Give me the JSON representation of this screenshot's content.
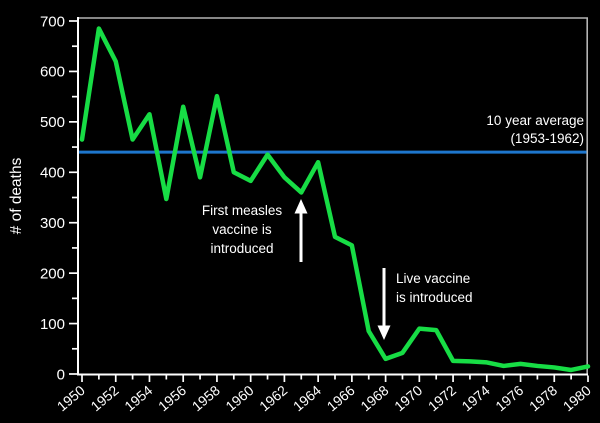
{
  "chart_data": {
    "type": "line",
    "title": "",
    "xlabel": "",
    "ylabel": "# of deaths",
    "ylim": [
      0,
      700
    ],
    "ytick_step": 100,
    "yminor_step": 50,
    "xlim": [
      1950,
      1980
    ],
    "xtick_label_step": 2,
    "grid": false,
    "legend_position": "none",
    "background_color": "#000000",
    "axis_color": "#ffffff",
    "border_color": "#b4b4b4",
    "x": [
      1950,
      1951,
      1952,
      1953,
      1954,
      1955,
      1956,
      1957,
      1958,
      1959,
      1960,
      1961,
      1962,
      1963,
      1964,
      1965,
      1966,
      1967,
      1968,
      1969,
      1970,
      1971,
      1972,
      1973,
      1974,
      1975,
      1976,
      1977,
      1978,
      1979,
      1980
    ],
    "series": [
      {
        "name": "measles-deaths",
        "color": "#17dd45",
        "values": [
          465,
          685,
          620,
          465,
          515,
          347,
          530,
          390,
          551,
          400,
          383,
          435,
          390,
          360,
          420,
          272,
          255,
          85,
          30,
          42,
          90,
          87,
          26,
          25,
          23,
          16,
          20,
          16,
          13,
          8,
          15
        ]
      }
    ],
    "reference_line": {
      "value": 440,
      "color": "#1e76cd"
    },
    "annotations": [
      {
        "id": "ten-year-average",
        "lines": [
          "10 year average",
          "(1953-1962)"
        ]
      },
      {
        "id": "first-measles-vaccine",
        "lines": [
          "First measles",
          "vaccine is",
          "introduced"
        ],
        "arrow": "up",
        "arrow_points_to_year": 1963
      },
      {
        "id": "live-vaccine",
        "lines": [
          "Live vaccine",
          "is introduced"
        ],
        "arrow": "down",
        "arrow_points_to_year": 1968
      }
    ],
    "y_tick_labels": [
      "0",
      "100",
      "200",
      "300",
      "400",
      "500",
      "600",
      "700"
    ],
    "x_tick_labels": [
      "1950",
      "1952",
      "1954",
      "1956",
      "1958",
      "1960",
      "1962",
      "1964",
      "1966",
      "1968",
      "1970",
      "1972",
      "1974",
      "1976",
      "1978",
      "1980"
    ]
  }
}
